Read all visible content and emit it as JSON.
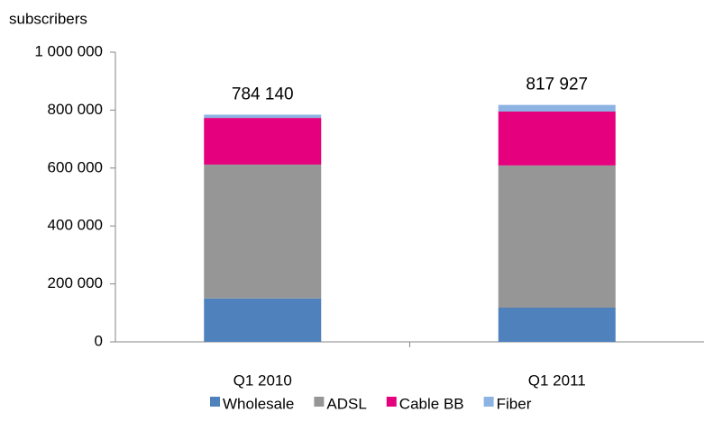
{
  "chart_data": {
    "type": "stacked_bar",
    "y_axis_label": "subscribers",
    "categories": [
      "Q1 2010",
      "Q1 2011"
    ],
    "series": [
      {
        "name": "Wholesale",
        "color": "#4f81bd",
        "values": [
          150000,
          118000
        ]
      },
      {
        "name": "ADSL",
        "color": "#969696",
        "values": [
          462000,
          491000
        ]
      },
      {
        "name": "Cable BB",
        "color": "#e5007d",
        "values": [
          161000,
          186000
        ]
      },
      {
        "name": "Fiber",
        "color": "#8db3e2",
        "values": [
          11140,
          22927
        ]
      }
    ],
    "totals": {
      "values": [
        784140,
        817927
      ],
      "value_labels": [
        "784 140",
        "817 927"
      ]
    },
    "ylim": [
      0,
      1000000
    ],
    "yticks": [
      0,
      {
        "value": 200000,
        "label": "200 000"
      },
      {
        "value": 400000,
        "label": "400 000"
      },
      {
        "value": 600000,
        "label": "600 000"
      },
      {
        "value": 800000,
        "label": "800 000"
      },
      {
        "value": 1000000,
        "label": "1 000 000"
      }
    ],
    "grid": false,
    "legend": "bottom"
  }
}
